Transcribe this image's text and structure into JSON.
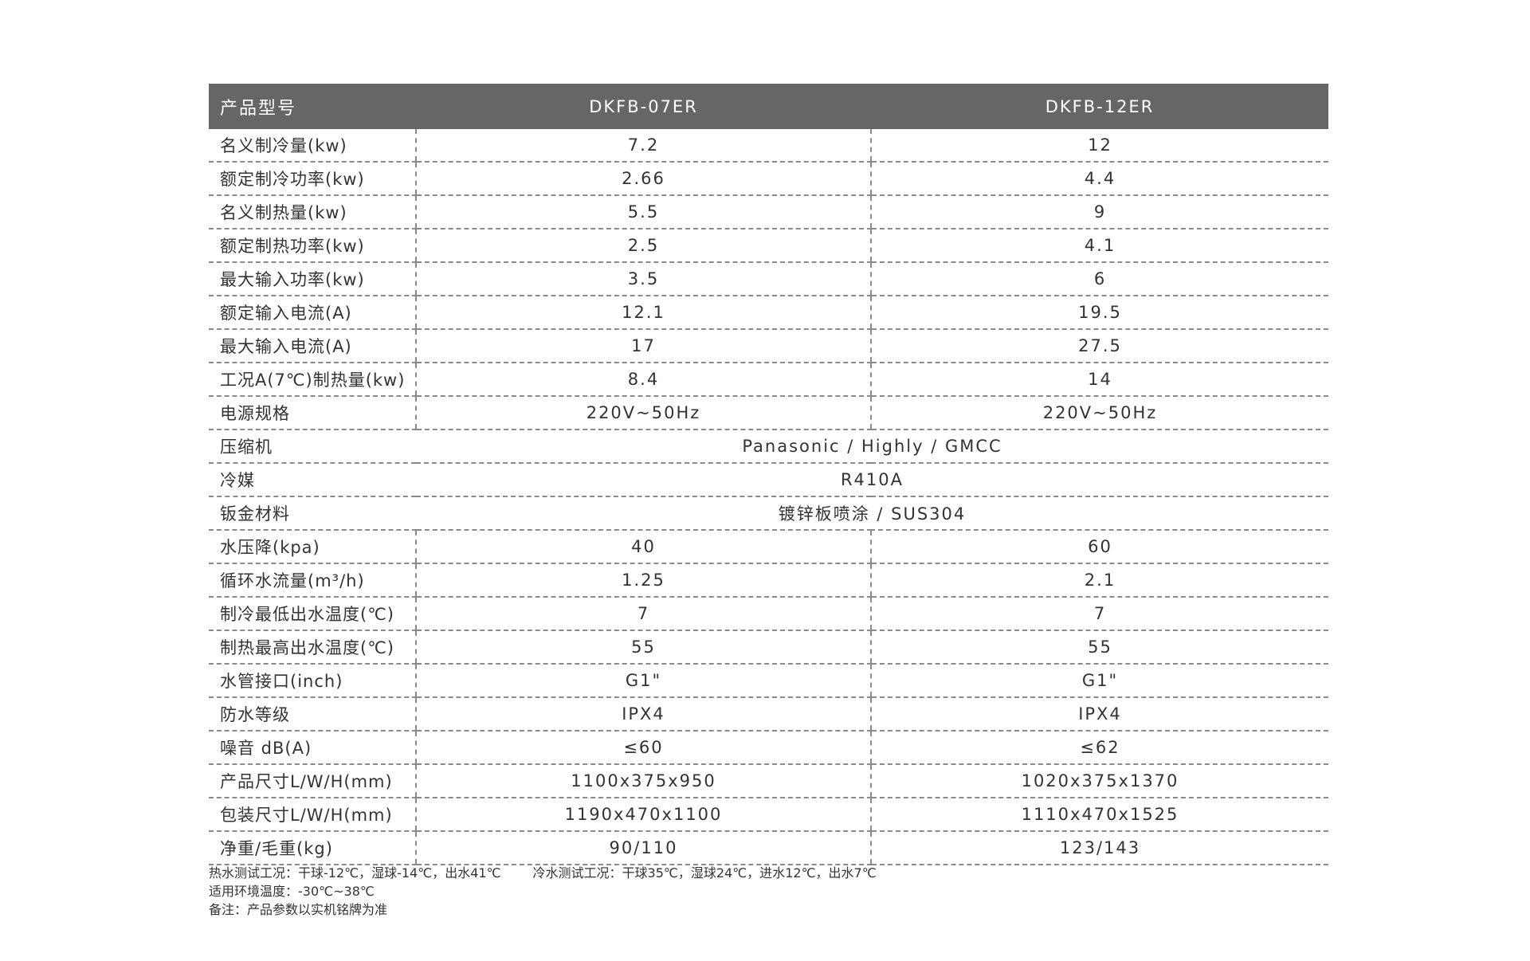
{
  "header": {
    "label": "产品型号",
    "models": [
      "DKFB-07ER",
      "DKFB-12ER"
    ]
  },
  "rows": [
    {
      "label": "名义制冷量(kw)",
      "values": [
        "7.2",
        "12"
      ]
    },
    {
      "label": "额定制冷功率(kw)",
      "values": [
        "2.66",
        "4.4"
      ]
    },
    {
      "label": "名义制热量(kw)",
      "values": [
        "5.5",
        "9"
      ]
    },
    {
      "label": "额定制热功率(kw)",
      "values": [
        "2.5",
        "4.1"
      ]
    },
    {
      "label": "最大输入功率(kw)",
      "values": [
        "3.5",
        "6"
      ]
    },
    {
      "label": "额定输入电流(A)",
      "values": [
        "12.1",
        "19.5"
      ]
    },
    {
      "label": "最大输入电流(A)",
      "values": [
        "17",
        "27.5"
      ]
    },
    {
      "label": "工况A(7℃)制热量(kw)",
      "values": [
        "8.4",
        "14"
      ]
    },
    {
      "label": "电源规格",
      "values": [
        "220V~50Hz",
        "220V~50Hz"
      ]
    },
    {
      "label": "压缩机",
      "span": "Panasonic / Highly / GMCC"
    },
    {
      "label": "冷媒",
      "span": "R410A"
    },
    {
      "label": "钣金材料",
      "span": "镀锌板喷涂 / SUS304"
    },
    {
      "label": "水压降(kpa)",
      "values": [
        "40",
        "60"
      ]
    },
    {
      "label": "循环水流量(m³/h)",
      "values": [
        "1.25",
        "2.1"
      ]
    },
    {
      "label": "制冷最低出水温度(℃)",
      "values": [
        "7",
        "7"
      ]
    },
    {
      "label": "制热最高出水温度(℃)",
      "values": [
        "55",
        "55"
      ]
    },
    {
      "label": "水管接口(inch)",
      "values": [
        "G1\"",
        "G1\""
      ]
    },
    {
      "label": "防水等级",
      "values": [
        "IPX4",
        "IPX4"
      ]
    },
    {
      "label": "噪音 dB(A)",
      "values": [
        "≤60",
        "≤62"
      ]
    },
    {
      "label": "产品尺寸L/W/H(mm)",
      "values": [
        "1100x375x950",
        "1020x375x1370"
      ]
    },
    {
      "label": "包装尺寸L/W/H(mm)",
      "values": [
        "1190x470x1100",
        "1110x470x1525"
      ]
    },
    {
      "label": "净重/毛重(kg)",
      "values": [
        "90/110",
        "123/143"
      ]
    }
  ],
  "notes": {
    "hot_test": "热水测试工况：干球-12℃，湿球-14℃，出水41℃",
    "cold_test": "冷水测试工况：干球35℃，湿球24℃，进水12℃，出水7℃",
    "ambient": "适用环境温度：-30℃~38℃",
    "remark": "备注：产品参数以实机铭牌为准"
  },
  "colors": {
    "header_bg": "#666666",
    "header_text": "#ffffff",
    "divider": "#8a8a8a"
  }
}
